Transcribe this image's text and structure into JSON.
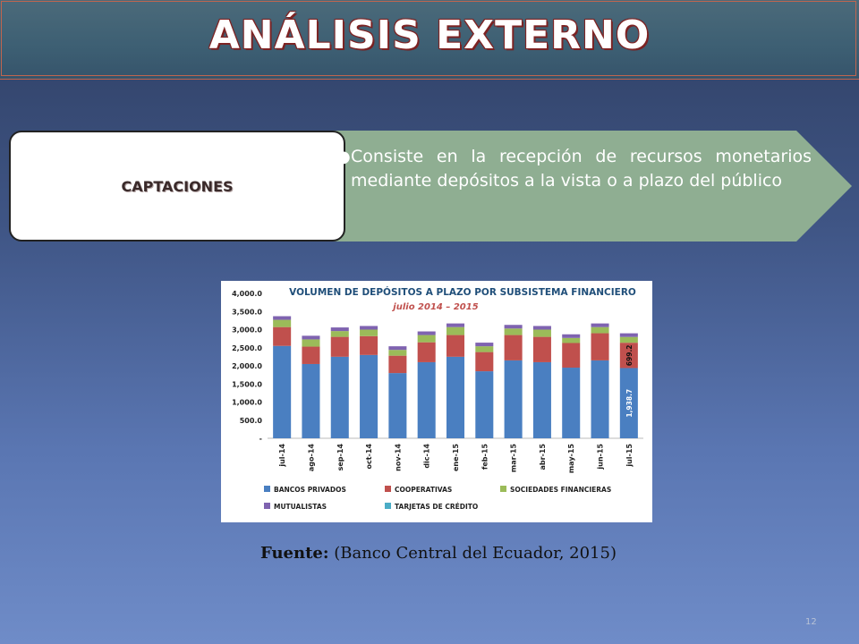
{
  "slide": {
    "title": "ANÁLISIS EXTERNO",
    "box_label": "CAPTACIONES",
    "bullet": "Consiste en la recepción de recursos monetarios mediante depósitos a la vista o a plazo del público",
    "source_label": "Fuente:",
    "source_text": "(Banco Central del Ecuador, 2015)",
    "page_number": "12"
  },
  "colors": {
    "bancos": "#4a7fc1",
    "cooperativas": "#c0504d",
    "sociedades": "#9bbb59",
    "mutualistas": "#7f63b0",
    "tarjetas": "#4bacc6",
    "arrow_fill": "#8fae92",
    "title_color": "#1f4e79",
    "subtitle_color": "#c0504d"
  },
  "chart_data": {
    "type": "bar",
    "stacked": true,
    "title": "VOLUMEN DE DEPÓSITOS A PLAZO POR SUBSISTEMA FINANCIERO",
    "subtitle": "julio 2014 – 2015",
    "categories": [
      "jul-14",
      "ago-14",
      "sep-14",
      "oct-14",
      "nov-14",
      "dic-14",
      "ene-15",
      "feb-15",
      "mar-15",
      "abr-15",
      "may-15",
      "jun-15",
      "jul-15"
    ],
    "ylim": [
      0,
      4000
    ],
    "yticks": [
      "4,000.0",
      "3,500.0",
      "3,000.0",
      "2,500.0",
      "2,000.0",
      "1,500.0",
      "1,000.0",
      "500.0",
      "-"
    ],
    "series": [
      {
        "name": "BANCOS PRIVADOS",
        "color": "#4a7fc1",
        "values": [
          2550,
          2050,
          2250,
          2300,
          1800,
          2100,
          2250,
          1850,
          2150,
          2100,
          1950,
          2150,
          1938.7
        ]
      },
      {
        "name": "COOPERATIVAS",
        "color": "#c0504d",
        "values": [
          520,
          480,
          550,
          520,
          480,
          550,
          600,
          530,
          700,
          700,
          680,
          750,
          699.2
        ]
      },
      {
        "name": "SOCIEDADES FINANCIERAS",
        "color": "#9bbb59",
        "values": [
          200,
          200,
          160,
          180,
          160,
          200,
          220,
          160,
          180,
          200,
          140,
          170,
          160
        ]
      },
      {
        "name": "MUTUALISTAS",
        "color": "#7f63b0",
        "values": [
          100,
          100,
          100,
          100,
          100,
          100,
          100,
          100,
          100,
          100,
          100,
          100,
          100
        ]
      },
      {
        "name": "TARJETAS DE CRÉDITO",
        "color": "#4bacc6",
        "values": [
          0,
          0,
          0,
          0,
          0,
          0,
          0,
          0,
          0,
          0,
          0,
          0,
          0
        ]
      }
    ],
    "data_labels": [
      {
        "category": "jul-15",
        "series": "BANCOS PRIVADOS",
        "text": "1,938.7"
      },
      {
        "category": "jul-15",
        "series": "COOPERATIVAS",
        "text": "699.2"
      }
    ],
    "legend": [
      {
        "name": "BANCOS PRIVADOS",
        "color": "#4a7fc1"
      },
      {
        "name": "COOPERATIVAS",
        "color": "#c0504d"
      },
      {
        "name": "SOCIEDADES FINANCIERAS",
        "color": "#9bbb59"
      },
      {
        "name": "MUTUALISTAS",
        "color": "#7f63b0"
      },
      {
        "name": "TARJETAS DE CRÉDITO",
        "color": "#4bacc6"
      }
    ],
    "legend_placement": "bottom"
  }
}
